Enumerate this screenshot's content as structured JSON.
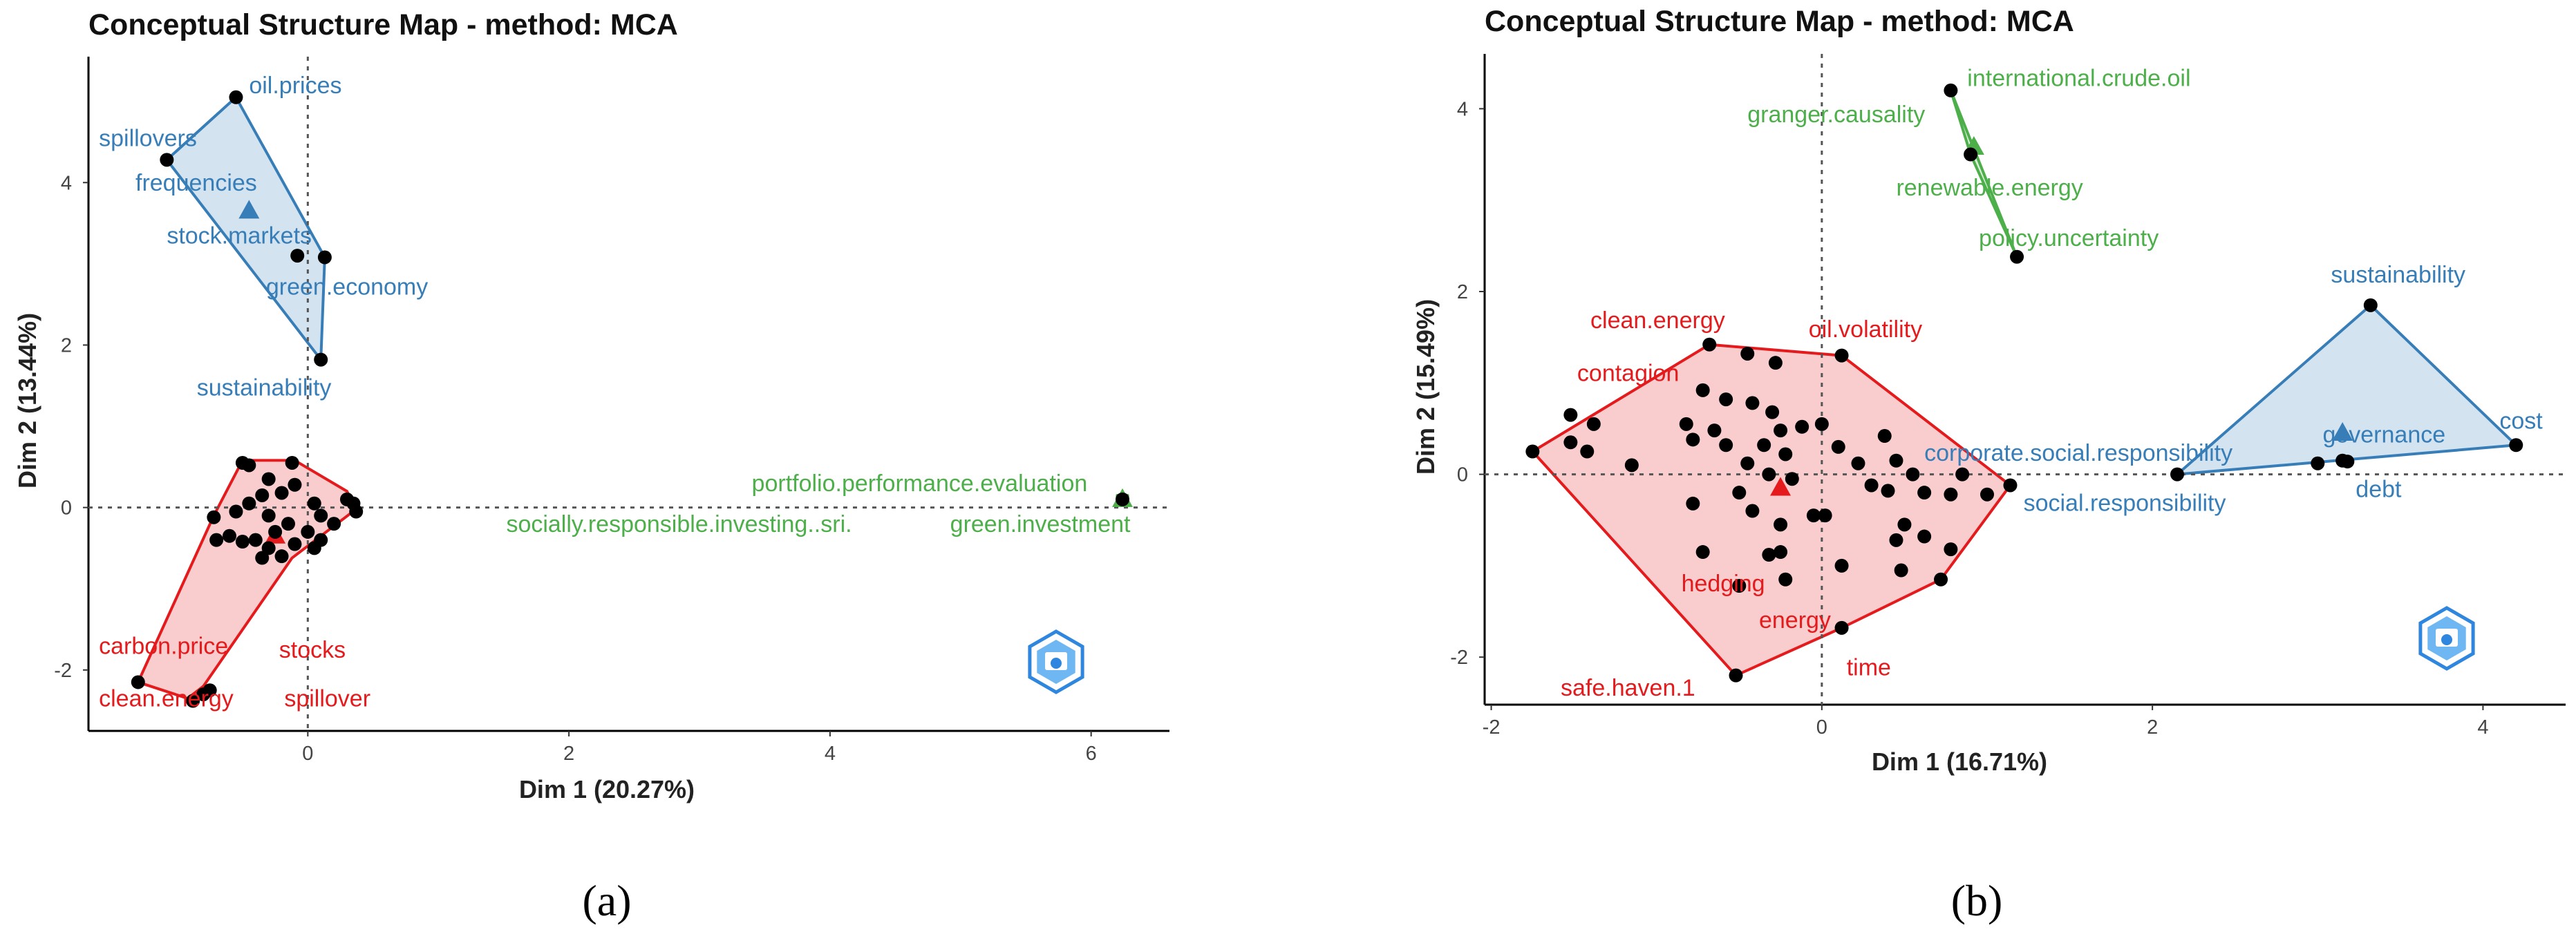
{
  "colors": {
    "red": "#E41A1C",
    "blue": "#377EB8",
    "green": "#4DAF4A",
    "point": "#000000"
  },
  "chart_data": [
    {
      "type": "scatter",
      "panel": "a",
      "caption": "(a)",
      "title": "Conceptual Structure Map - method: MCA",
      "xlabel": "Dim 1 (20.27%)",
      "ylabel": "Dim 2 (13.44%)",
      "xlim": [
        -1.68,
        6.6
      ],
      "ylim": [
        -2.75,
        5.55
      ],
      "xticks": [
        0,
        2,
        4,
        6
      ],
      "yticks": [
        -2,
        0,
        2,
        4
      ],
      "logo": "watermark-logo",
      "clusters": [
        {
          "name": "blue",
          "color": "#377EB8",
          "hull": [
            [
              -0.55,
              5.05
            ],
            [
              -1.08,
              4.28
            ],
            [
              0.1,
              1.82
            ],
            [
              0.13,
              3.08
            ]
          ],
          "centroid": [
            -0.45,
            3.65
          ],
          "points": [
            [
              -0.55,
              5.05
            ],
            [
              -1.08,
              4.28
            ],
            [
              -0.08,
              3.1
            ],
            [
              0.13,
              3.08
            ],
            [
              0.1,
              1.82
            ]
          ],
          "labels": [
            {
              "text": "oil.prices",
              "x": -0.45,
              "y": 5.1
            },
            {
              "text": "spillovers",
              "x": -1.6,
              "y": 4.45
            },
            {
              "text": "frequencies",
              "x": -1.32,
              "y": 3.9
            },
            {
              "text": "stock.markets",
              "x": -1.08,
              "y": 3.25
            },
            {
              "text": "green.economy",
              "x": -0.32,
              "y": 2.62
            },
            {
              "text": "sustainability",
              "x": -0.85,
              "y": 1.38
            }
          ]
        },
        {
          "name": "red",
          "color": "#E41A1C",
          "hull": [
            [
              -0.5,
              0.58
            ],
            [
              -0.1,
              0.58
            ],
            [
              0.3,
              0.2
            ],
            [
              0.37,
              -0.02
            ],
            [
              -0.12,
              -0.62
            ],
            [
              -0.8,
              -2.2
            ],
            [
              -0.92,
              -2.35
            ],
            [
              -1.3,
              -2.15
            ],
            [
              -0.72,
              -0.1
            ]
          ],
          "centroid": [
            -0.25,
            -0.35
          ],
          "points": [
            [
              -0.5,
              0.55
            ],
            [
              -0.45,
              0.52
            ],
            [
              -0.12,
              0.55
            ],
            [
              -0.3,
              0.35
            ],
            [
              -0.1,
              0.28
            ],
            [
              -0.35,
              0.15
            ],
            [
              -0.2,
              0.18
            ],
            [
              0.05,
              0.05
            ],
            [
              0.3,
              0.1
            ],
            [
              0.37,
              -0.05
            ],
            [
              0.35,
              0.05
            ],
            [
              -0.72,
              -0.12
            ],
            [
              -0.55,
              -0.05
            ],
            [
              -0.45,
              0.05
            ],
            [
              -0.3,
              -0.1
            ],
            [
              -0.15,
              -0.2
            ],
            [
              0.0,
              -0.3
            ],
            [
              0.1,
              -0.4
            ],
            [
              -0.6,
              -0.35
            ],
            [
              -0.5,
              -0.42
            ],
            [
              -0.3,
              -0.5
            ],
            [
              -0.2,
              -0.6
            ],
            [
              -0.1,
              -0.45
            ],
            [
              0.05,
              -0.5
            ],
            [
              -0.4,
              -0.4
            ],
            [
              -0.25,
              -0.3
            ],
            [
              0.1,
              -0.1
            ],
            [
              0.2,
              -0.2
            ],
            [
              -0.7,
              -0.4
            ],
            [
              -0.35,
              -0.62
            ],
            [
              -0.8,
              -2.3
            ],
            [
              -0.88,
              -2.38
            ],
            [
              -0.75,
              -2.25
            ],
            [
              -1.3,
              -2.15
            ]
          ],
          "labels": [
            {
              "text": "carbon.price",
              "x": -1.6,
              "y": -1.8
            },
            {
              "text": "stocks",
              "x": -0.22,
              "y": -1.85
            },
            {
              "text": "clean.energy",
              "x": -1.6,
              "y": -2.45
            },
            {
              "text": "spillover",
              "x": -0.18,
              "y": -2.45
            }
          ]
        },
        {
          "name": "green",
          "color": "#4DAF4A",
          "hull": [
            [
              6.2,
              0.15
            ],
            [
              6.28,
              0.15
            ],
            [
              6.28,
              0.05
            ],
            [
              6.2,
              0.05
            ]
          ],
          "centroid": [
            6.24,
            0.1
          ],
          "points": [
            [
              6.24,
              0.1
            ]
          ],
          "labels": [
            {
              "text": "portfolio.performance.evaluation",
              "x": 3.4,
              "y": 0.2
            },
            {
              "text": "socially.responsible.investing..sri.",
              "x": 1.52,
              "y": -0.3
            },
            {
              "text": "green.investment",
              "x": 4.92,
              "y": -0.3
            }
          ]
        }
      ]
    },
    {
      "type": "scatter",
      "panel": "b",
      "caption": "(b)",
      "title": "Conceptual Structure Map - method: MCA",
      "xlabel": "Dim 1 (16.71%)",
      "ylabel": "Dim 2 (15.49%)",
      "xlim": [
        -2.04,
        4.5
      ],
      "ylim": [
        -2.52,
        4.6
      ],
      "xticks": [
        -2,
        0,
        2,
        4
      ],
      "yticks": [
        -2,
        0,
        2,
        4
      ],
      "logo": "watermark-logo",
      "clusters": [
        {
          "name": "green",
          "color": "#4DAF4A",
          "hull": [
            [
              0.78,
              4.2
            ],
            [
              0.9,
              3.5
            ],
            [
              1.18,
              2.38
            ]
          ],
          "centroid": [
            0.92,
            3.58
          ],
          "points": [
            [
              0.78,
              4.2
            ],
            [
              0.9,
              3.5
            ],
            [
              1.18,
              2.38
            ]
          ],
          "labels": [
            {
              "text": "international.crude.oil",
              "x": 0.88,
              "y": 4.25
            },
            {
              "text": "granger.causality",
              "x": -0.45,
              "y": 3.85
            },
            {
              "text": "renewable.energy",
              "x": 0.45,
              "y": 3.05
            },
            {
              "text": "policy.uncertainty",
              "x": 0.95,
              "y": 2.5
            }
          ]
        },
        {
          "name": "red",
          "color": "#E41A1C",
          "hull": [
            [
              -1.75,
              0.25
            ],
            [
              -0.68,
              1.42
            ],
            [
              0.12,
              1.3
            ],
            [
              1.14,
              -0.12
            ],
            [
              0.72,
              -1.15
            ],
            [
              0.12,
              -1.68
            ],
            [
              -0.52,
              -2.2
            ]
          ],
          "centroid": [
            -0.25,
            -0.15
          ],
          "points": [
            [
              -1.75,
              0.25
            ],
            [
              -1.52,
              0.65
            ],
            [
              -1.38,
              0.55
            ],
            [
              -1.52,
              0.35
            ],
            [
              -1.42,
              0.25
            ],
            [
              -1.15,
              0.1
            ],
            [
              -0.68,
              1.42
            ],
            [
              -0.45,
              1.32
            ],
            [
              -0.28,
              1.22
            ],
            [
              -0.72,
              0.92
            ],
            [
              -0.58,
              0.82
            ],
            [
              -0.82,
              0.55
            ],
            [
              -0.65,
              0.48
            ],
            [
              -0.78,
              0.38
            ],
            [
              -0.58,
              0.32
            ],
            [
              -0.42,
              0.78
            ],
            [
              -0.3,
              0.68
            ],
            [
              -0.25,
              0.48
            ],
            [
              -0.35,
              0.32
            ],
            [
              -0.22,
              0.22
            ],
            [
              -0.45,
              0.12
            ],
            [
              -0.32,
              0.0
            ],
            [
              -0.18,
              -0.05
            ],
            [
              -0.12,
              0.52
            ],
            [
              0.0,
              0.55
            ],
            [
              0.1,
              0.3
            ],
            [
              0.22,
              0.12
            ],
            [
              0.38,
              0.42
            ],
            [
              0.45,
              0.15
            ],
            [
              0.55,
              0.0
            ],
            [
              0.62,
              -0.2
            ],
            [
              0.78,
              -0.22
            ],
            [
              0.85,
              0.0
            ],
            [
              1.0,
              -0.22
            ],
            [
              0.3,
              -0.12
            ],
            [
              0.4,
              -0.18
            ],
            [
              0.5,
              -0.55
            ],
            [
              0.62,
              -0.68
            ],
            [
              0.78,
              -0.82
            ],
            [
              0.45,
              -0.72
            ],
            [
              -0.05,
              -0.45
            ],
            [
              0.02,
              -0.45
            ],
            [
              -0.5,
              -0.2
            ],
            [
              -0.42,
              -0.4
            ],
            [
              -0.25,
              -0.55
            ],
            [
              -0.32,
              -0.88
            ],
            [
              -0.22,
              -1.15
            ],
            [
              -0.5,
              -1.22
            ],
            [
              -0.78,
              -0.32
            ],
            [
              -0.72,
              -0.85
            ],
            [
              -0.25,
              -0.85
            ],
            [
              0.12,
              -1.0
            ],
            [
              0.48,
              -1.05
            ],
            [
              0.72,
              -1.15
            ],
            [
              0.12,
              1.3
            ],
            [
              1.14,
              -0.12
            ],
            [
              0.12,
              -1.68
            ],
            [
              -0.52,
              -2.2
            ]
          ],
          "labels": [
            {
              "text": "clean.energy",
              "x": -1.4,
              "y": 1.6
            },
            {
              "text": "oil.volatility",
              "x": -0.08,
              "y": 1.5
            },
            {
              "text": "contagion",
              "x": -1.48,
              "y": 1.02
            },
            {
              "text": "hedging",
              "x": -0.85,
              "y": -1.28
            },
            {
              "text": "energy",
              "x": -0.38,
              "y": -1.68
            },
            {
              "text": "time",
              "x": 0.15,
              "y": -2.2
            },
            {
              "text": "safe.haven.1",
              "x": -1.58,
              "y": -2.42
            }
          ]
        },
        {
          "name": "blue",
          "color": "#377EB8",
          "hull": [
            [
              3.32,
              1.85
            ],
            [
              4.2,
              0.32
            ],
            [
              2.15,
              0.0
            ]
          ],
          "centroid": [
            3.15,
            0.45
          ],
          "points": [
            [
              3.32,
              1.85
            ],
            [
              4.2,
              0.32
            ],
            [
              2.15,
              0.0
            ],
            [
              3.0,
              0.12
            ],
            [
              3.15,
              0.15
            ],
            [
              3.18,
              0.14
            ]
          ],
          "labels": [
            {
              "text": "sustainability",
              "x": 3.08,
              "y": 2.1
            },
            {
              "text": "cost",
              "x": 4.1,
              "y": 0.5
            },
            {
              "text": "corporate.social.responsibility",
              "x": 0.62,
              "y": 0.15
            },
            {
              "text": "governance",
              "x": 3.03,
              "y": 0.35
            },
            {
              "text": "debt",
              "x": 3.23,
              "y": -0.25
            },
            {
              "text": "social.responsibility",
              "x": 1.22,
              "y": -0.4
            }
          ]
        }
      ]
    }
  ]
}
